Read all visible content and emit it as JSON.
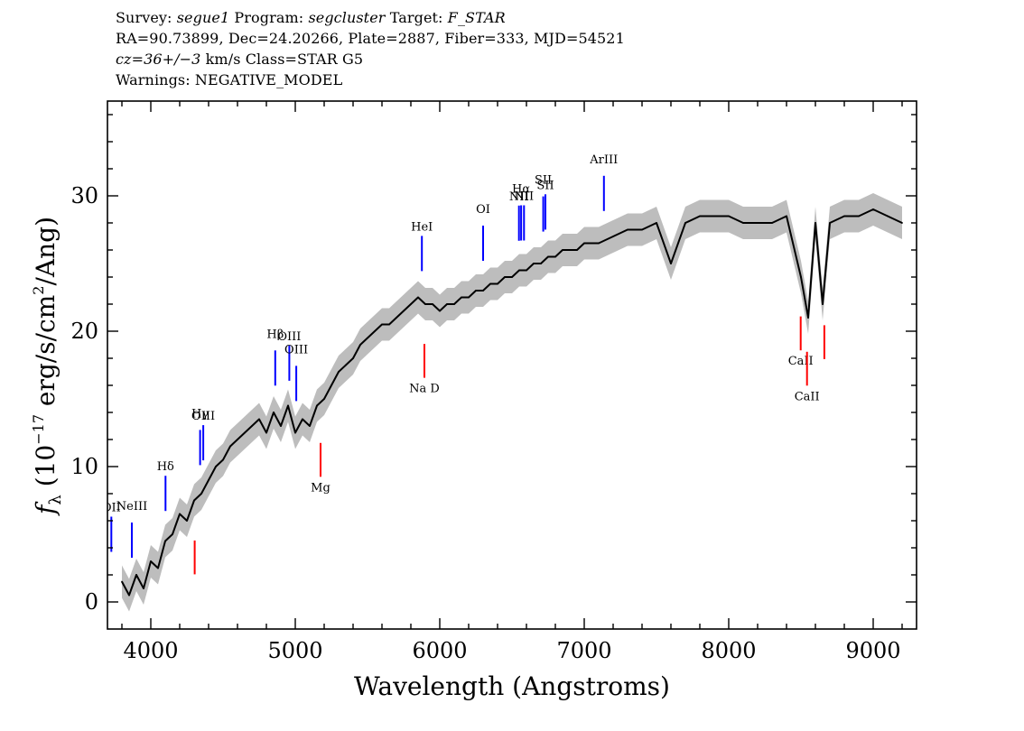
{
  "header": {
    "line1": {
      "survey_label": "Survey: ",
      "survey_value": "segue1",
      "program_label": " Program: ",
      "program_value": "segcluster",
      "target_label": " Target: ",
      "target_value": "F_STAR"
    },
    "line2": "RA=90.73899, Dec=24.20266, Plate=2887, Fiber=333, MJD=54521",
    "line3": {
      "cz_value": "cz=36+/−3",
      "rest": " km/s Class=STAR G5"
    },
    "line4": "Warnings: NEGATIVE_MODEL"
  },
  "colors": {
    "spectrum": "#000000",
    "error_band": "#bdbdbd",
    "emission_line": "#0000ff",
    "absorption_line": "#ff0000",
    "axes": "#000000"
  },
  "chart_data": {
    "type": "line",
    "title": "",
    "xlabel": "Wavelength (Angstroms)",
    "ylabel": "f_λ (10^-17 erg/s/cm^2/Ang)",
    "ylabel_parts": {
      "f": "f",
      "sub": "λ",
      "open": " (10",
      "exp1": "−17",
      "mid": " erg/s/cm",
      "exp2": "2",
      "close": "/Ang)"
    },
    "xlim": [
      3700,
      9300
    ],
    "ylim": [
      -2,
      37
    ],
    "x_ticks": [
      4000,
      5000,
      6000,
      7000,
      8000,
      9000
    ],
    "x_tick_labels": [
      "4000",
      "5000",
      "6000",
      "7000",
      "8000",
      "9000"
    ],
    "y_ticks": [
      0,
      10,
      20,
      30
    ],
    "y_tick_labels": [
      "0",
      "10",
      "20",
      "30"
    ],
    "grid": false,
    "series": [
      {
        "x": [
          3800,
          3850,
          3900,
          3950,
          4000,
          4050,
          4100,
          4150,
          4200,
          4250,
          4300,
          4350,
          4400,
          4450,
          4500,
          4550,
          4600,
          4650,
          4700,
          4750,
          4800,
          4850,
          4900,
          4950,
          5000,
          5050,
          5100,
          5150,
          5200,
          5250,
          5300,
          5350,
          5400,
          5450,
          5500,
          5550,
          5600,
          5650,
          5700,
          5750,
          5800,
          5850,
          5900,
          5950,
          6000,
          6050,
          6100,
          6150,
          6200,
          6250,
          6300,
          6350,
          6400,
          6450,
          6500,
          6550,
          6600,
          6650,
          6700,
          6750,
          6800,
          6850,
          6900,
          6950,
          7000,
          7100,
          7200,
          7300,
          7400,
          7500,
          7600,
          7700,
          7800,
          7900,
          8000,
          8100,
          8200,
          8300,
          8400,
          8500,
          8550,
          8600,
          8650,
          8700,
          8800,
          8900,
          9000,
          9100,
          9200
        ],
        "y": [
          1.5,
          0.5,
          2.0,
          1.0,
          3.0,
          2.5,
          4.5,
          5.0,
          6.5,
          6.0,
          7.5,
          8.0,
          9.0,
          10.0,
          10.5,
          11.5,
          12.0,
          12.5,
          13.0,
          13.5,
          12.5,
          14.0,
          13.0,
          14.5,
          12.5,
          13.5,
          13.0,
          14.5,
          15.0,
          16.0,
          17.0,
          17.5,
          18.0,
          19.0,
          19.5,
          20.0,
          20.5,
          20.5,
          21.0,
          21.5,
          22.0,
          22.5,
          22.0,
          22.0,
          21.5,
          22.0,
          22.0,
          22.5,
          22.5,
          23.0,
          23.0,
          23.5,
          23.5,
          24.0,
          24.0,
          24.5,
          24.5,
          25.0,
          25.0,
          25.5,
          25.5,
          26.0,
          26.0,
          26.0,
          26.5,
          26.5,
          27.0,
          27.5,
          27.5,
          28.0,
          25.0,
          28.0,
          28.5,
          28.5,
          28.5,
          28.0,
          28.0,
          28.0,
          28.5,
          24.0,
          21.0,
          28.0,
          22.0,
          28.0,
          28.5,
          28.5,
          29.0,
          28.5,
          28.0
        ]
      }
    ],
    "emission_lines": [
      {
        "label": "OII",
        "wavelength": 3727
      },
      {
        "label": "NeIII",
        "wavelength": 3869
      },
      {
        "label": "Hδ",
        "wavelength": 4102
      },
      {
        "label": "Hγ",
        "wavelength": 4341
      },
      {
        "label": "OIII",
        "wavelength": 4363
      },
      {
        "label": "Hβ",
        "wavelength": 4861
      },
      {
        "label": "OIII",
        "wavelength": 4959
      },
      {
        "label": "OIII",
        "wavelength": 5007
      },
      {
        "label": "HeI",
        "wavelength": 5876
      },
      {
        "label": "OI",
        "wavelength": 6300
      },
      {
        "label": "NII",
        "wavelength": 6548
      },
      {
        "label": "Hα",
        "wavelength": 6563
      },
      {
        "label": "NII",
        "wavelength": 6583
      },
      {
        "label": "SII",
        "wavelength": 6716
      },
      {
        "label": "SII",
        "wavelength": 6731
      },
      {
        "label": "ArIII",
        "wavelength": 7136
      }
    ],
    "absorption_lines": [
      {
        "label": "",
        "wavelength": 4304
      },
      {
        "label": "Mg",
        "wavelength": 5175
      },
      {
        "label": "Na D",
        "wavelength": 5894
      },
      {
        "label": "CaII",
        "wavelength": 8498
      },
      {
        "label": "CaII",
        "wavelength": 8542
      },
      {
        "label": "",
        "wavelength": 8662
      }
    ]
  }
}
